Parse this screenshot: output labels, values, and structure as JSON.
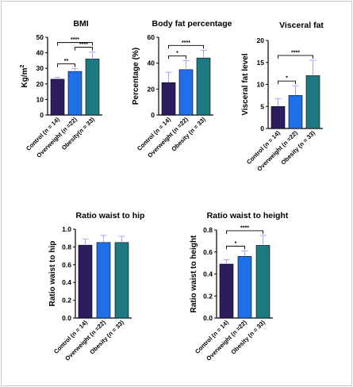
{
  "chart_data": [
    {
      "type": "bar",
      "title": "BMI",
      "ylabel": "Kg/m²",
      "ylim": [
        0,
        50
      ],
      "yticks": [
        "0",
        "10",
        "20",
        "30",
        "40",
        "50"
      ],
      "ytick_values": [
        0,
        10,
        20,
        30,
        40,
        50
      ],
      "categories": [
        "Control (n = 14)",
        "Overweight (n =22)",
        "Obesity(n = 33)"
      ],
      "values": [
        23,
        28,
        36
      ],
      "errors": [
        1.2,
        1.8,
        4.5
      ],
      "colors": [
        "#2c1d5e",
        "#1f6fe8",
        "#1e7a82"
      ],
      "significance": [
        {
          "from": 0,
          "to": 1,
          "label": "**"
        },
        {
          "from": 1,
          "to": 2,
          "label": "****"
        },
        {
          "from": 0,
          "to": 2,
          "label": "****"
        }
      ]
    },
    {
      "type": "bar",
      "title": "Body fat percentage",
      "ylabel": "Percentage (%)",
      "ylim": [
        0,
        60
      ],
      "yticks": [
        "0",
        "20",
        "40",
        "60"
      ],
      "ytick_values": [
        0,
        20,
        40,
        60
      ],
      "categories": [
        "Control (n = 14)",
        "Overweight (n =22)",
        "Obesity (n = 33)"
      ],
      "values": [
        25,
        35,
        44
      ],
      "errors": [
        8,
        7,
        6
      ],
      "colors": [
        "#2c1d5e",
        "#1f6fe8",
        "#1e7a82"
      ],
      "significance": [
        {
          "from": 0,
          "to": 1,
          "label": "*"
        },
        {
          "from": 0,
          "to": 2,
          "label": "****"
        }
      ]
    },
    {
      "type": "bar",
      "title": "Visceral fat",
      "ylabel": "Visceral fat level",
      "ylim": [
        0,
        20
      ],
      "yticks": [
        "0",
        "5",
        "10",
        "15",
        "20"
      ],
      "ytick_values": [
        0,
        5,
        10,
        15,
        20
      ],
      "categories": [
        "Control (n = 14)",
        "Overweight (n =22)",
        "Obesity (n = 33)"
      ],
      "values": [
        5,
        7.5,
        12
      ],
      "errors": [
        1.8,
        2.2,
        3.5
      ],
      "colors": [
        "#2c1d5e",
        "#1f6fe8",
        "#1e7a82"
      ],
      "significance": [
        {
          "from": 0,
          "to": 1,
          "label": "*"
        },
        {
          "from": 0,
          "to": 2,
          "label": "****"
        }
      ]
    },
    {
      "type": "bar",
      "title": "Ratio waist to hip",
      "ylabel": "Ratio waist to hip",
      "ylim": [
        0,
        1.0
      ],
      "yticks": [
        "0.0",
        "0.2",
        "0.4",
        "0.6",
        "0.8",
        "1.0"
      ],
      "ytick_values": [
        0,
        0.2,
        0.4,
        0.6,
        0.8,
        1.0
      ],
      "categories": [
        "Control (n = 14)",
        "Overweight (n =22)",
        "Obesity (n = 33)"
      ],
      "values": [
        0.82,
        0.85,
        0.85
      ],
      "errors": [
        0.07,
        0.08,
        0.07
      ],
      "colors": [
        "#2c1d5e",
        "#1f6fe8",
        "#1e7a82"
      ],
      "significance": []
    },
    {
      "type": "bar",
      "title": "Ratio waist to height",
      "ylabel": "Ratio waist to height",
      "ylim": [
        0,
        0.8
      ],
      "yticks": [
        "0.0",
        "0.2",
        "0.4",
        "0.6",
        "0.8"
      ],
      "ytick_values": [
        0,
        0.2,
        0.4,
        0.6,
        0.8
      ],
      "categories": [
        "Control (n = 14)",
        "Overweight (n =22)",
        "Obesity (n = 33)"
      ],
      "values": [
        0.49,
        0.56,
        0.66
      ],
      "errors": [
        0.04,
        0.05,
        0.09
      ],
      "colors": [
        "#2c1d5e",
        "#1f6fe8",
        "#1e7a82"
      ],
      "significance": [
        {
          "from": 0,
          "to": 1,
          "label": "*"
        },
        {
          "from": 0,
          "to": 2,
          "label": "****"
        }
      ]
    }
  ]
}
